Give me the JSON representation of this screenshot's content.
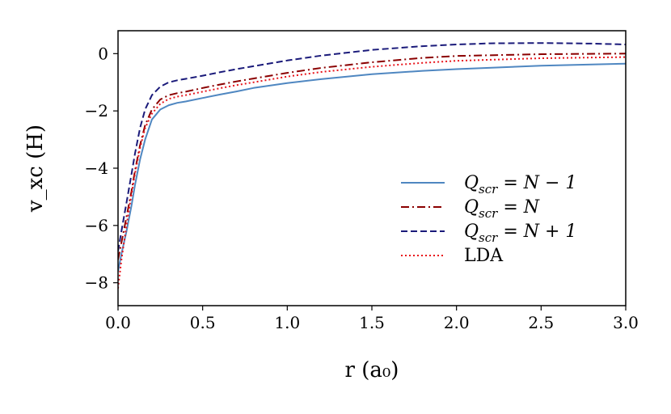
{
  "chart_data": {
    "type": "line",
    "title": "",
    "xlabel": "r (a₀)",
    "ylabel": "v_xc (H)",
    "xlim": [
      0,
      3.0
    ],
    "ylim": [
      -8.8,
      0.8
    ],
    "xticks": [
      0.0,
      0.5,
      1.0,
      1.5,
      2.0,
      2.5,
      3.0
    ],
    "xtick_labels": [
      "0.0",
      "0.5",
      "1.0",
      "1.5",
      "2.0",
      "2.5",
      "3.0"
    ],
    "yticks": [
      0,
      -2,
      -4,
      -6,
      -8
    ],
    "ytick_labels": [
      "0",
      "−2",
      "−4",
      "−6",
      "−8"
    ],
    "grid": false,
    "legend_position": "lower-right",
    "series": [
      {
        "name": "Q_scr = N − 1",
        "legend_main": "Q",
        "legend_sub": "scr",
        "legend_rest": " = N − 1",
        "color": "#4f87c1",
        "dash": "solid",
        "x": [
          0.0,
          0.02,
          0.05,
          0.08,
          0.1,
          0.13,
          0.16,
          0.2,
          0.25,
          0.3,
          0.35,
          0.4,
          0.5,
          0.6,
          0.7,
          0.8,
          1.0,
          1.2,
          1.5,
          1.8,
          2.0,
          2.5,
          3.0
        ],
        "y": [
          -7.6,
          -7.0,
          -6.2,
          -5.3,
          -4.6,
          -3.7,
          -3.0,
          -2.3,
          -1.95,
          -1.8,
          -1.72,
          -1.67,
          -1.55,
          -1.43,
          -1.32,
          -1.2,
          -1.03,
          -0.89,
          -0.72,
          -0.6,
          -0.54,
          -0.42,
          -0.35
        ]
      },
      {
        "name": "Q_scr = N",
        "legend_main": "Q",
        "legend_sub": "scr",
        "legend_rest": " = N",
        "color": "#8b0000",
        "dash": "dashdot",
        "x": [
          0.0,
          0.02,
          0.05,
          0.08,
          0.1,
          0.13,
          0.16,
          0.2,
          0.25,
          0.3,
          0.35,
          0.4,
          0.5,
          0.6,
          0.7,
          0.8,
          1.0,
          1.2,
          1.5,
          1.8,
          2.0,
          2.5,
          3.0
        ],
        "y": [
          -7.2,
          -6.6,
          -5.7,
          -4.8,
          -4.1,
          -3.2,
          -2.5,
          -1.95,
          -1.6,
          -1.45,
          -1.38,
          -1.33,
          -1.2,
          -1.08,
          -0.97,
          -0.87,
          -0.67,
          -0.5,
          -0.3,
          -0.15,
          -0.08,
          -0.02,
          0.0
        ]
      },
      {
        "name": "Q_scr = N + 1",
        "legend_main": "Q",
        "legend_sub": "scr",
        "legend_rest": " = N + 1",
        "color": "#1a1a7a",
        "dash": "dashed",
        "x": [
          0.0,
          0.02,
          0.05,
          0.08,
          0.1,
          0.13,
          0.16,
          0.2,
          0.25,
          0.3,
          0.35,
          0.4,
          0.5,
          0.6,
          0.7,
          0.8,
          1.0,
          1.2,
          1.5,
          1.8,
          2.0,
          2.2,
          2.5,
          2.8,
          3.0
        ],
        "y": [
          -6.9,
          -6.2,
          -5.2,
          -4.2,
          -3.5,
          -2.6,
          -1.95,
          -1.45,
          -1.15,
          -1.0,
          -0.93,
          -0.88,
          -0.77,
          -0.65,
          -0.54,
          -0.44,
          -0.24,
          -0.07,
          0.13,
          0.26,
          0.32,
          0.36,
          0.37,
          0.35,
          0.32
        ]
      },
      {
        "name": "LDA",
        "legend_main": "LDA",
        "legend_sub": "",
        "legend_rest": "",
        "color": "#e8141b",
        "dash": "dotted",
        "x": [
          0.0,
          0.02,
          0.05,
          0.08,
          0.1,
          0.13,
          0.16,
          0.2,
          0.25,
          0.3,
          0.35,
          0.4,
          0.5,
          0.6,
          0.7,
          0.8,
          1.0,
          1.2,
          1.5,
          1.8,
          2.0,
          2.5,
          3.0
        ],
        "y": [
          -8.2,
          -7.2,
          -6.0,
          -4.9,
          -4.2,
          -3.3,
          -2.6,
          -2.1,
          -1.75,
          -1.58,
          -1.5,
          -1.45,
          -1.33,
          -1.21,
          -1.1,
          -1.0,
          -0.8,
          -0.64,
          -0.46,
          -0.32,
          -0.25,
          -0.16,
          -0.12
        ]
      }
    ]
  }
}
